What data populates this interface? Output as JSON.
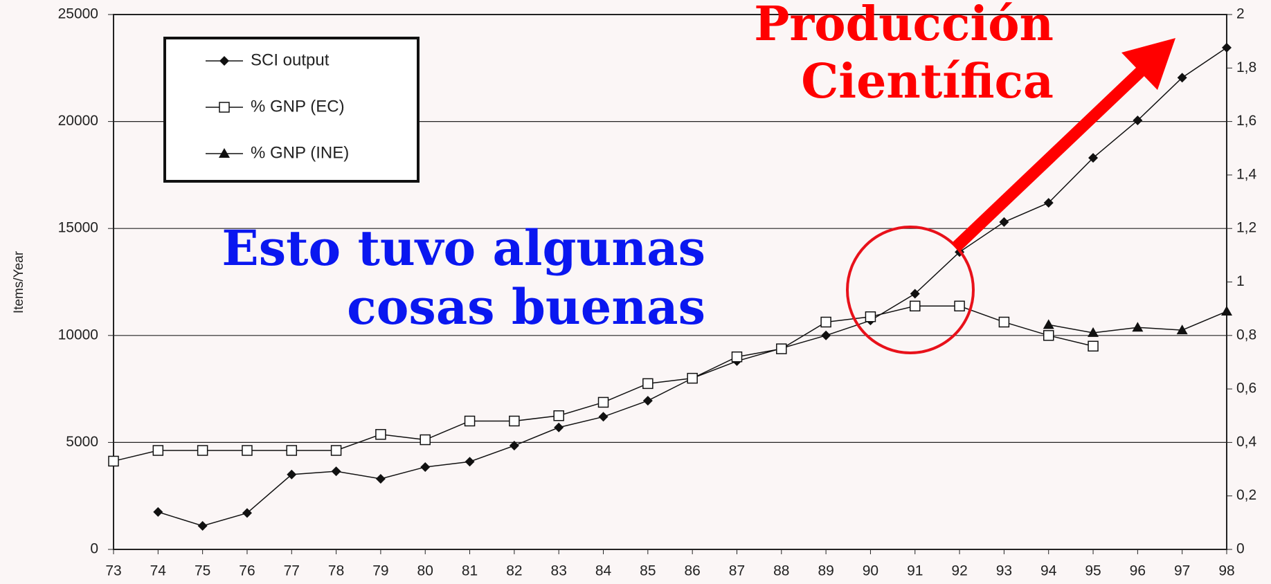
{
  "chart_data": {
    "type": "line",
    "y_label": "Items/Year",
    "categories": [
      "73",
      "74",
      "75",
      "76",
      "77",
      "78",
      "79",
      "80",
      "81",
      "82",
      "83",
      "84",
      "85",
      "86",
      "87",
      "88",
      "89",
      "90",
      "91",
      "92",
      "93",
      "94",
      "95",
      "96",
      "97",
      "98"
    ],
    "series": [
      {
        "name": "SCI output",
        "color": "#111111",
        "marker": "diamond",
        "values": [
          null,
          1750,
          1100,
          1700,
          3500,
          3650,
          3300,
          3850,
          4100,
          4850,
          5700,
          6200,
          6950,
          8000,
          8800,
          9400,
          10000,
          10700,
          11950,
          13900,
          15300,
          16200,
          18300,
          20050,
          22050,
          23450
        ]
      },
      {
        "name": "% GNP (EC)",
        "color": "#111111",
        "marker": "square",
        "axis": "y2",
        "values": [
          0.33,
          0.37,
          0.37,
          0.37,
          0.37,
          0.37,
          0.43,
          0.41,
          0.48,
          0.48,
          0.5,
          0.55,
          0.62,
          0.64,
          0.72,
          0.75,
          0.85,
          0.87,
          0.91,
          0.91,
          0.85,
          0.8,
          0.76,
          null,
          null,
          null
        ]
      },
      {
        "name": "% GNP (INE)",
        "color": "#111111",
        "marker": "triangle",
        "axis": "y2",
        "values": [
          null,
          null,
          null,
          null,
          null,
          null,
          null,
          null,
          null,
          null,
          null,
          null,
          null,
          null,
          null,
          null,
          null,
          null,
          null,
          null,
          null,
          0.84,
          0.81,
          0.83,
          0.82,
          0.89
        ]
      }
    ],
    "ylim": [
      0,
      25000
    ],
    "yticks": [
      0,
      5000,
      10000,
      15000,
      20000,
      25000
    ],
    "y2lim": [
      0,
      2
    ],
    "y2ticks": [
      0,
      {
        "value": 0.2,
        "label": "0,2"
      },
      {
        "value": 0.4,
        "label": "0,4"
      },
      {
        "value": 0.6,
        "label": "0,6"
      },
      {
        "value": 0.8,
        "label": "0,8"
      },
      1,
      {
        "value": 1.2,
        "label": "1,2"
      },
      {
        "value": 1.4,
        "label": "1,4"
      },
      {
        "value": 1.6,
        "label": "1,6"
      },
      {
        "value": 1.8,
        "label": "1,8"
      },
      2
    ],
    "grid": true,
    "legend": "upper left",
    "annotations": [
      "Producción Científica",
      "Esto tuvo algunas cosas buenas"
    ]
  }
}
